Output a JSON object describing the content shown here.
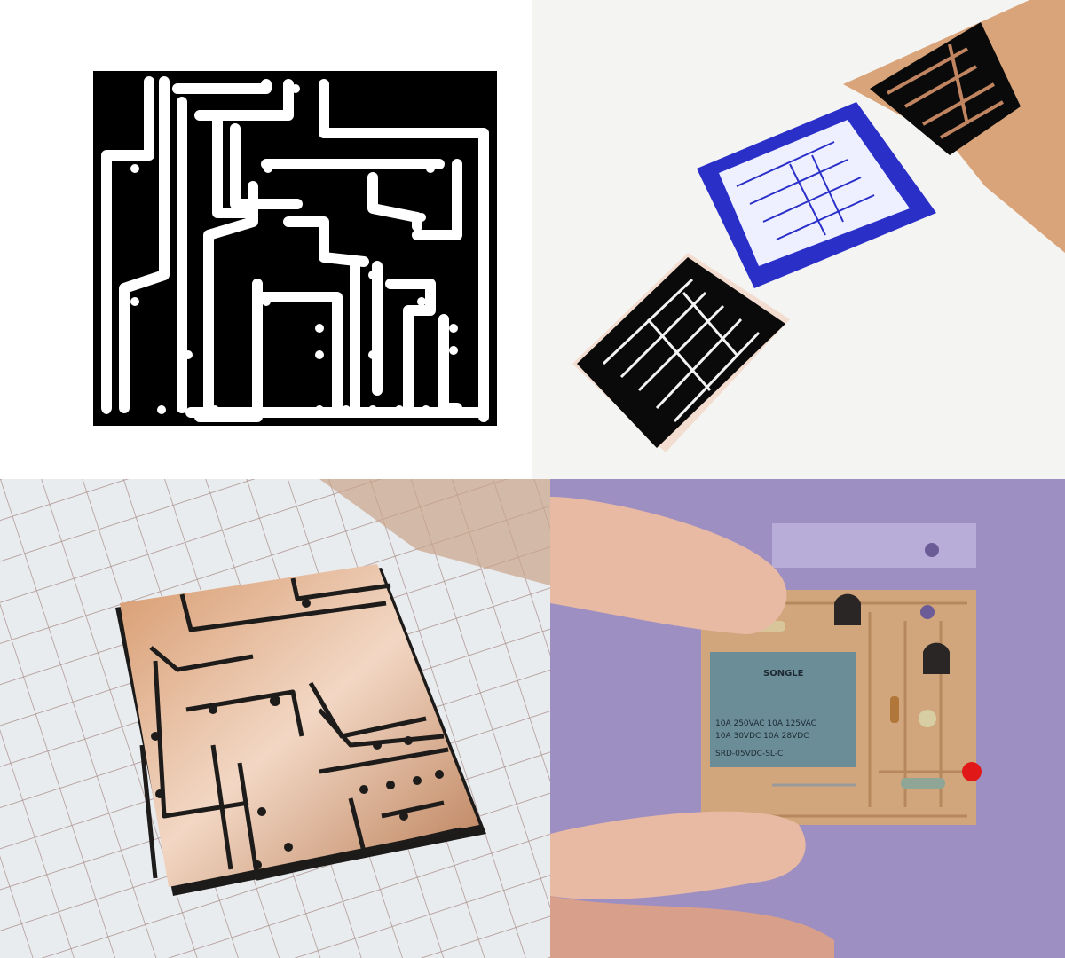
{
  "collage": {
    "panels": [
      {
        "id": "pcb-layout-artwork",
        "description_color": "#000000"
      },
      {
        "id": "toner-transfer-prints",
        "accent": "#2a2fc8"
      },
      {
        "id": "etched-copper-board",
        "accent": "#c58a5a"
      },
      {
        "id": "assembled-relay-module",
        "accent": "#6f8e95"
      }
    ]
  },
  "relay": {
    "brand": "SONGLE",
    "rating_line_1": "10A 250VAC  10A 125VAC",
    "rating_line_2": "10A  30VDC  10A  28VDC",
    "model": "SRD-05VDC-SL-C"
  },
  "colors": {
    "trace_black": "#000000",
    "copper": "#c98d5c",
    "blue_film": "#2a2fc8",
    "relay_body": "#6b8d98",
    "led_red": "#e01818",
    "background_purple": "#9d8fc2"
  }
}
